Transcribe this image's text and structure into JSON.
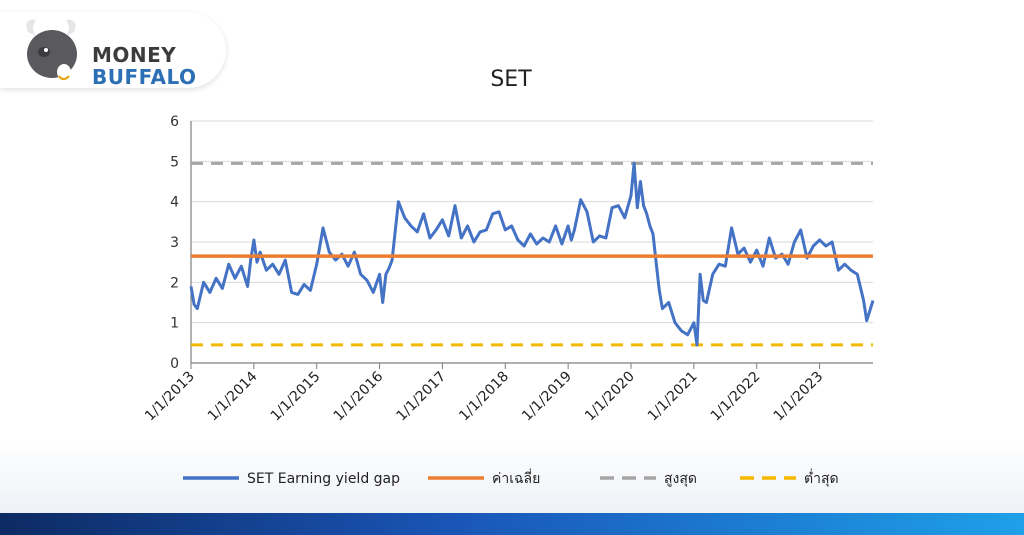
{
  "brand": {
    "line1": "MONEY",
    "line2": "BUFFALO"
  },
  "colors": {
    "series": "#4472c4",
    "average": "#ed7d31",
    "max": "#a5a5a5",
    "min": "#f5b800"
  },
  "chart_data": {
    "type": "line",
    "title": "SET",
    "xlabel": "",
    "ylabel": "",
    "ylim": [
      0,
      6
    ],
    "xlim": [
      2013.0,
      2023.85
    ],
    "yticks": [
      "0",
      "1",
      "2",
      "3",
      "4",
      "5",
      "6"
    ],
    "xticks": [
      "1/1/2013",
      "1/1/2014",
      "1/1/2015",
      "1/1/2016",
      "1/1/2017",
      "1/1/2018",
      "1/1/2019",
      "1/1/2020",
      "1/1/2021",
      "1/1/2022",
      "1/1/2023"
    ],
    "grid": true,
    "legend_position": "bottom",
    "series": [
      {
        "name": "SET Earning yield gap",
        "style": "solid",
        "x": [
          2013.0,
          2013.05,
          2013.1,
          2013.2,
          2013.3,
          2013.4,
          2013.5,
          2013.6,
          2013.7,
          2013.8,
          2013.9,
          2013.95,
          2014.0,
          2014.05,
          2014.1,
          2014.2,
          2014.3,
          2014.4,
          2014.5,
          2014.6,
          2014.7,
          2014.8,
          2014.9,
          2015.0,
          2015.05,
          2015.1,
          2015.2,
          2015.3,
          2015.4,
          2015.5,
          2015.6,
          2015.7,
          2015.8,
          2015.9,
          2016.0,
          2016.05,
          2016.1,
          2016.15,
          2016.2,
          2016.3,
          2016.4,
          2016.5,
          2016.6,
          2016.7,
          2016.8,
          2016.9,
          2017.0,
          2017.1,
          2017.2,
          2017.3,
          2017.4,
          2017.5,
          2017.6,
          2017.7,
          2017.8,
          2017.9,
          2018.0,
          2018.1,
          2018.2,
          2018.3,
          2018.4,
          2018.5,
          2018.6,
          2018.7,
          2018.8,
          2018.9,
          2019.0,
          2019.05,
          2019.1,
          2019.2,
          2019.3,
          2019.4,
          2019.5,
          2019.6,
          2019.7,
          2019.8,
          2019.9,
          2020.0,
          2020.05,
          2020.1,
          2020.15,
          2020.2,
          2020.25,
          2020.3,
          2020.35,
          2020.4,
          2020.45,
          2020.5,
          2020.6,
          2020.7,
          2020.8,
          2020.9,
          2021.0,
          2021.05,
          2021.1,
          2021.15,
          2021.2,
          2021.3,
          2021.4,
          2021.5,
          2021.6,
          2021.7,
          2021.8,
          2021.9,
          2022.0,
          2022.1,
          2022.2,
          2022.3,
          2022.4,
          2022.5,
          2022.6,
          2022.7,
          2022.8,
          2022.9,
          2023.0,
          2023.1,
          2023.2,
          2023.3,
          2023.4,
          2023.5,
          2023.6,
          2023.7,
          2023.75,
          2023.8,
          2023.85
        ],
        "y": [
          1.9,
          1.45,
          1.35,
          2.0,
          1.75,
          2.1,
          1.85,
          2.45,
          2.1,
          2.4,
          1.9,
          2.55,
          3.05,
          2.5,
          2.75,
          2.3,
          2.45,
          2.2,
          2.55,
          1.75,
          1.7,
          1.95,
          1.8,
          2.45,
          2.9,
          3.35,
          2.75,
          2.55,
          2.7,
          2.4,
          2.75,
          2.2,
          2.05,
          1.75,
          2.2,
          1.5,
          2.2,
          2.35,
          2.55,
          4.0,
          3.6,
          3.4,
          3.25,
          3.7,
          3.1,
          3.3,
          3.55,
          3.15,
          3.9,
          3.1,
          3.4,
          3.0,
          3.25,
          3.3,
          3.7,
          3.75,
          3.3,
          3.4,
          3.05,
          2.9,
          3.2,
          2.95,
          3.1,
          3.0,
          3.4,
          2.95,
          3.4,
          3.05,
          3.3,
          4.05,
          3.75,
          3.0,
          3.15,
          3.1,
          3.85,
          3.9,
          3.6,
          4.15,
          4.95,
          3.85,
          4.5,
          3.9,
          3.7,
          3.4,
          3.2,
          2.5,
          1.8,
          1.35,
          1.5,
          1.0,
          0.8,
          0.7,
          1.0,
          0.45,
          2.2,
          1.55,
          1.5,
          2.2,
          2.45,
          2.4,
          3.35,
          2.7,
          2.85,
          2.5,
          2.8,
          2.4,
          3.1,
          2.6,
          2.7,
          2.45,
          3.0,
          3.3,
          2.6,
          2.9,
          3.05,
          2.9,
          3.0,
          2.3,
          2.45,
          2.3,
          2.2,
          1.55,
          1.05,
          1.3,
          1.55
        ]
      },
      {
        "name": "ค่าเฉลี่ย",
        "style": "solid",
        "constant": 2.65
      },
      {
        "name": "สูงสุด",
        "style": "dashed",
        "constant": 4.95
      },
      {
        "name": "ต่ำสุด",
        "style": "dashed",
        "constant": 0.45
      }
    ]
  }
}
